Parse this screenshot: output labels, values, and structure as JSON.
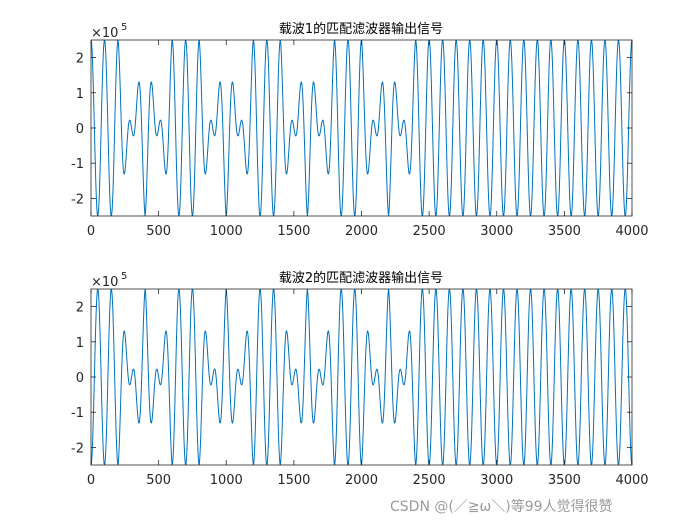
{
  "colors": {
    "line": "#0072BD",
    "axis": "#262626",
    "background": "#ffffff"
  },
  "watermark": "CSDN @(／≧ω＼)等99人觉得很赞",
  "chart_data": [
    {
      "type": "line",
      "title": "载波1的匹配滤波器输出信号",
      "xlim": [
        0,
        4000
      ],
      "ylim": [
        -2.5,
        2.5
      ],
      "exponent_base": "×10",
      "exponent_power": "5",
      "xticks": [
        "0",
        "500",
        "1000",
        "1500",
        "2000",
        "2500",
        "3000",
        "3500",
        "4000"
      ],
      "yticks": [
        "2",
        "1",
        "0",
        "-1",
        "-2"
      ],
      "grid": false,
      "series": [
        {
          "line_sign": 1,
          "bit_period": 200,
          "bits": [
            1,
            1,
            -1,
            1,
            1,
            -1,
            1,
            1,
            -1,
            1,
            1,
            -1,
            1,
            1,
            1,
            1,
            1,
            1,
            1,
            1
          ]
        }
      ]
    },
    {
      "type": "line",
      "title": "载波2的匹配滤波器输出信号",
      "xlim": [
        0,
        4000
      ],
      "ylim": [
        -2.5,
        2.5
      ],
      "exponent_base": "×10",
      "exponent_power": "5",
      "xticks": [
        "0",
        "500",
        "1000",
        "1500",
        "2000",
        "2500",
        "3000",
        "3500",
        "4000"
      ],
      "yticks": [
        "2",
        "1",
        "0",
        "-1",
        "-2"
      ],
      "grid": false,
      "series": [
        {
          "line_sign": -1,
          "bit_period": 200,
          "bits": [
            1,
            1,
            -1,
            1,
            1,
            -1,
            1,
            1,
            -1,
            1,
            1,
            -1,
            1,
            1,
            1,
            1,
            1,
            1,
            1,
            1
          ]
        }
      ]
    }
  ]
}
